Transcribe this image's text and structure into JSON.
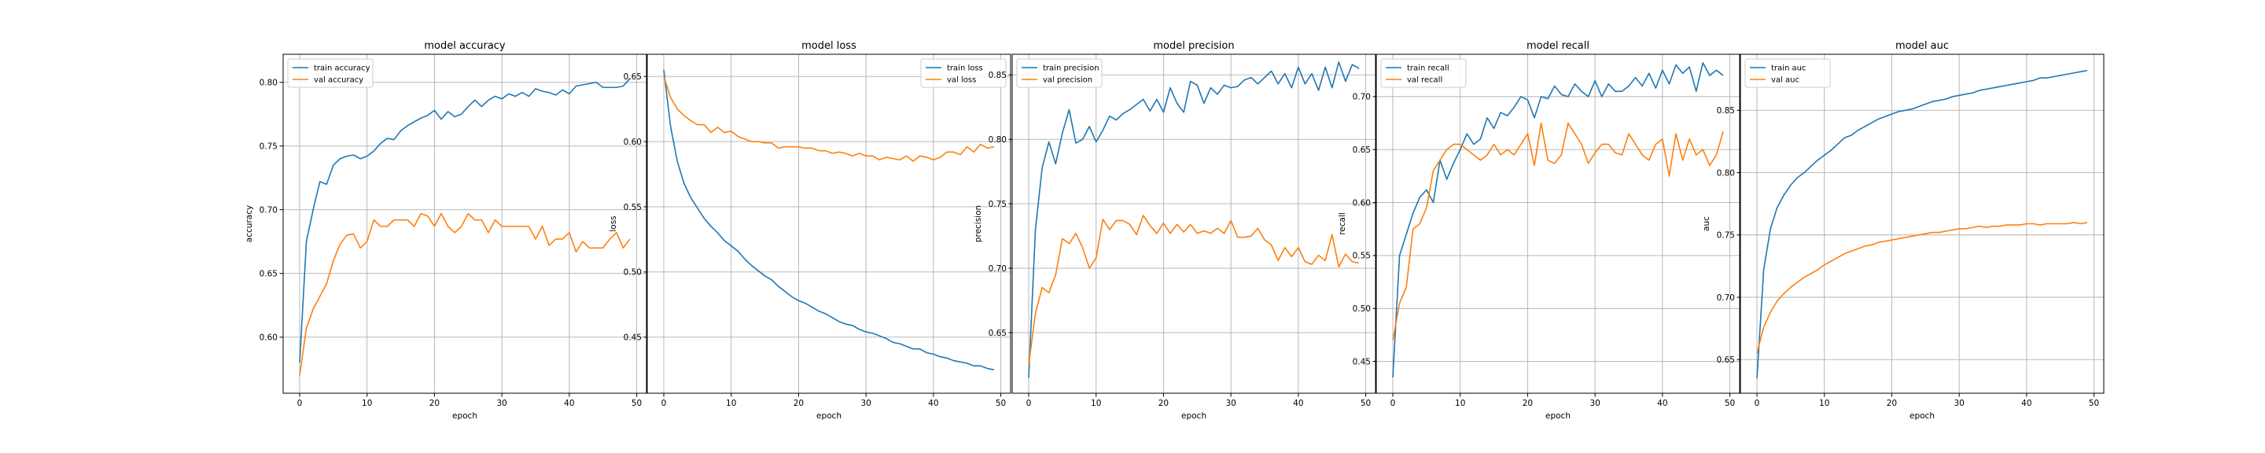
{
  "figure": {
    "colors": {
      "train": "#1f77b4",
      "val": "#ff7f0e",
      "grid": "#b0b0b0",
      "axes": "#000000"
    }
  },
  "chart_data": [
    {
      "type": "line",
      "title": "model accuracy",
      "xlabel": "epoch",
      "ylabel": "accuracy",
      "xlim": [
        -2.45,
        51.45
      ],
      "ylim": [
        0.556,
        0.822
      ],
      "xticks": [
        0,
        10,
        20,
        30,
        40,
        50
      ],
      "yticks": [
        0.6,
        0.65,
        0.7,
        0.75,
        0.8
      ],
      "ytick_labels": [
        "0.60",
        "0.65",
        "0.70",
        "0.75",
        "0.80"
      ],
      "grid": true,
      "legend": "upper left",
      "x": [
        0,
        1,
        2,
        3,
        4,
        5,
        6,
        7,
        8,
        9,
        10,
        11,
        12,
        13,
        14,
        15,
        16,
        17,
        18,
        19,
        20,
        21,
        22,
        23,
        24,
        25,
        26,
        27,
        28,
        29,
        30,
        31,
        32,
        33,
        34,
        35,
        36,
        37,
        38,
        39,
        40,
        41,
        42,
        43,
        44,
        45,
        46,
        47,
        48,
        49
      ],
      "series": [
        {
          "name": "train accuracy",
          "color": "#1f77b4",
          "values": [
            0.58,
            0.675,
            0.7,
            0.722,
            0.72,
            0.735,
            0.74,
            0.742,
            0.743,
            0.74,
            0.742,
            0.746,
            0.752,
            0.756,
            0.755,
            0.762,
            0.766,
            0.769,
            0.772,
            0.774,
            0.778,
            0.771,
            0.777,
            0.773,
            0.775,
            0.781,
            0.786,
            0.781,
            0.786,
            0.789,
            0.787,
            0.791,
            0.789,
            0.792,
            0.789,
            0.795,
            0.793,
            0.792,
            0.79,
            0.794,
            0.791,
            0.797,
            0.798,
            0.799,
            0.8,
            0.796,
            0.796,
            0.796,
            0.797,
            0.803
          ]
        },
        {
          "name": "val accuracy",
          "color": "#ff7f0e",
          "values": [
            0.57,
            0.607,
            0.622,
            0.632,
            0.642,
            0.66,
            0.673,
            0.68,
            0.681,
            0.67,
            0.675,
            0.692,
            0.687,
            0.687,
            0.692,
            0.692,
            0.692,
            0.687,
            0.697,
            0.695,
            0.687,
            0.697,
            0.687,
            0.682,
            0.687,
            0.697,
            0.692,
            0.692,
            0.682,
            0.692,
            0.687,
            0.687,
            0.687,
            0.687,
            0.687,
            0.677,
            0.687,
            0.672,
            0.677,
            0.677,
            0.682,
            0.667,
            0.675,
            0.67,
            0.67,
            0.67,
            0.677,
            0.682,
            0.67,
            0.677
          ]
        }
      ]
    },
    {
      "type": "line",
      "title": "model loss",
      "xlabel": "epoch",
      "ylabel": "loss",
      "xlim": [
        -2.45,
        51.45
      ],
      "ylim": [
        0.407,
        0.667
      ],
      "xticks": [
        0,
        10,
        20,
        30,
        40,
        50
      ],
      "yticks": [
        0.45,
        0.5,
        0.55,
        0.6,
        0.65
      ],
      "ytick_labels": [
        "0.45",
        "0.50",
        "0.55",
        "0.60",
        "0.65"
      ],
      "grid": true,
      "legend": "upper right",
      "x": [
        0,
        1,
        2,
        3,
        4,
        5,
        6,
        7,
        8,
        9,
        10,
        11,
        12,
        13,
        14,
        15,
        16,
        17,
        18,
        19,
        20,
        21,
        22,
        23,
        24,
        25,
        26,
        27,
        28,
        29,
        30,
        31,
        32,
        33,
        34,
        35,
        36,
        37,
        38,
        39,
        40,
        41,
        42,
        43,
        44,
        45,
        46,
        47,
        48,
        49
      ],
      "series": [
        {
          "name": "train loss",
          "color": "#1f77b4",
          "values": [
            0.655,
            0.612,
            0.585,
            0.568,
            0.557,
            0.549,
            0.541,
            0.535,
            0.53,
            0.524,
            0.52,
            0.516,
            0.51,
            0.505,
            0.501,
            0.497,
            0.494,
            0.489,
            0.485,
            0.481,
            0.478,
            0.476,
            0.473,
            0.47,
            0.468,
            0.465,
            0.462,
            0.46,
            0.459,
            0.456,
            0.454,
            0.453,
            0.451,
            0.449,
            0.446,
            0.445,
            0.443,
            0.441,
            0.441,
            0.438,
            0.437,
            0.435,
            0.434,
            0.432,
            0.431,
            0.43,
            0.428,
            0.428,
            0.426,
            0.425
          ]
        },
        {
          "name": "val loss",
          "color": "#ff7f0e",
          "values": [
            0.65,
            0.634,
            0.625,
            0.62,
            0.616,
            0.613,
            0.613,
            0.607,
            0.611,
            0.607,
            0.608,
            0.604,
            0.602,
            0.6,
            0.6,
            0.599,
            0.599,
            0.595,
            0.596,
            0.596,
            0.596,
            0.595,
            0.595,
            0.593,
            0.593,
            0.591,
            0.592,
            0.591,
            0.589,
            0.591,
            0.589,
            0.589,
            0.586,
            0.588,
            0.587,
            0.586,
            0.589,
            0.585,
            0.589,
            0.588,
            0.586,
            0.588,
            0.592,
            0.592,
            0.59,
            0.596,
            0.592,
            0.598,
            0.595,
            0.596
          ]
        }
      ]
    },
    {
      "type": "line",
      "title": "model precision",
      "xlabel": "epoch",
      "ylabel": "precision",
      "xlim": [
        -2.45,
        51.45
      ],
      "ylim": [
        0.603,
        0.866
      ],
      "xticks": [
        0,
        10,
        20,
        30,
        40,
        50
      ],
      "yticks": [
        0.65,
        0.7,
        0.75,
        0.8,
        0.85
      ],
      "ytick_labels": [
        "0.65",
        "0.70",
        "0.75",
        "0.80",
        "0.85"
      ],
      "grid": true,
      "legend": "upper left",
      "x": [
        0,
        1,
        2,
        3,
        4,
        5,
        6,
        7,
        8,
        9,
        10,
        11,
        12,
        13,
        14,
        15,
        16,
        17,
        18,
        19,
        20,
        21,
        22,
        23,
        24,
        25,
        26,
        27,
        28,
        29,
        30,
        31,
        32,
        33,
        34,
        35,
        36,
        37,
        38,
        39,
        40,
        41,
        42,
        43,
        44,
        45,
        46,
        47,
        48,
        49
      ],
      "series": [
        {
          "name": "train precision",
          "color": "#1f77b4",
          "values": [
            0.615,
            0.73,
            0.778,
            0.798,
            0.781,
            0.805,
            0.823,
            0.797,
            0.8,
            0.81,
            0.798,
            0.807,
            0.818,
            0.815,
            0.82,
            0.823,
            0.827,
            0.831,
            0.822,
            0.831,
            0.821,
            0.84,
            0.828,
            0.821,
            0.845,
            0.842,
            0.828,
            0.84,
            0.835,
            0.842,
            0.84,
            0.841,
            0.846,
            0.848,
            0.843,
            0.848,
            0.853,
            0.843,
            0.851,
            0.84,
            0.856,
            0.843,
            0.851,
            0.838,
            0.856,
            0.84,
            0.86,
            0.845,
            0.858,
            0.855
          ]
        },
        {
          "name": "val precision",
          "color": "#ff7f0e",
          "values": [
            0.625,
            0.665,
            0.685,
            0.681,
            0.695,
            0.723,
            0.719,
            0.727,
            0.716,
            0.7,
            0.708,
            0.738,
            0.73,
            0.737,
            0.737,
            0.734,
            0.726,
            0.741,
            0.733,
            0.727,
            0.735,
            0.727,
            0.734,
            0.728,
            0.734,
            0.727,
            0.729,
            0.727,
            0.731,
            0.727,
            0.737,
            0.724,
            0.724,
            0.725,
            0.731,
            0.722,
            0.718,
            0.706,
            0.716,
            0.709,
            0.716,
            0.705,
            0.703,
            0.71,
            0.706,
            0.726,
            0.701,
            0.711,
            0.705,
            0.704
          ]
        }
      ]
    },
    {
      "type": "line",
      "title": "model recall",
      "xlabel": "epoch",
      "ylabel": "recall",
      "xlim": [
        -2.45,
        51.45
      ],
      "ylim": [
        0.42,
        0.74
      ],
      "xticks": [
        0,
        10,
        20,
        30,
        40,
        50
      ],
      "yticks": [
        0.45,
        0.5,
        0.55,
        0.6,
        0.65,
        0.7
      ],
      "ytick_labels": [
        "0.45",
        "0.50",
        "0.55",
        "0.60",
        "0.65",
        "0.70"
      ],
      "grid": true,
      "legend": "upper left",
      "x": [
        0,
        1,
        2,
        3,
        4,
        5,
        6,
        7,
        8,
        9,
        10,
        11,
        12,
        13,
        14,
        15,
        16,
        17,
        18,
        19,
        20,
        21,
        22,
        23,
        24,
        25,
        26,
        27,
        28,
        29,
        30,
        31,
        32,
        33,
        34,
        35,
        36,
        37,
        38,
        39,
        40,
        41,
        42,
        43,
        44,
        45,
        46,
        47,
        48,
        49
      ],
      "series": [
        {
          "name": "train recall",
          "color": "#1f77b4",
          "values": [
            0.435,
            0.55,
            0.57,
            0.59,
            0.605,
            0.612,
            0.6,
            0.64,
            0.622,
            0.637,
            0.65,
            0.665,
            0.655,
            0.66,
            0.68,
            0.67,
            0.685,
            0.682,
            0.69,
            0.7,
            0.697,
            0.68,
            0.7,
            0.698,
            0.71,
            0.702,
            0.7,
            0.712,
            0.705,
            0.7,
            0.715,
            0.7,
            0.712,
            0.705,
            0.705,
            0.71,
            0.718,
            0.71,
            0.722,
            0.708,
            0.725,
            0.712,
            0.73,
            0.722,
            0.728,
            0.705,
            0.732,
            0.72,
            0.725,
            0.72
          ]
        },
        {
          "name": "val recall",
          "color": "#ff7f0e",
          "values": [
            0.47,
            0.505,
            0.52,
            0.575,
            0.58,
            0.595,
            0.63,
            0.64,
            0.65,
            0.655,
            0.655,
            0.65,
            0.645,
            0.64,
            0.645,
            0.655,
            0.645,
            0.65,
            0.645,
            0.655,
            0.665,
            0.635,
            0.675,
            0.64,
            0.637,
            0.645,
            0.675,
            0.665,
            0.655,
            0.637,
            0.647,
            0.655,
            0.655,
            0.647,
            0.645,
            0.665,
            0.655,
            0.645,
            0.64,
            0.655,
            0.66,
            0.625,
            0.665,
            0.64,
            0.66,
            0.645,
            0.65,
            0.635,
            0.645,
            0.667
          ]
        }
      ]
    },
    {
      "type": "line",
      "title": "model auc",
      "xlabel": "epoch",
      "ylabel": "auc",
      "xlim": [
        -2.45,
        51.45
      ],
      "ylim": [
        0.623,
        0.895
      ],
      "xticks": [
        0,
        10,
        20,
        30,
        40,
        50
      ],
      "yticks": [
        0.65,
        0.7,
        0.75,
        0.8,
        0.85
      ],
      "ytick_labels": [
        "0.65",
        "0.70",
        "0.75",
        "0.80",
        "0.85"
      ],
      "grid": true,
      "legend": "upper left",
      "x": [
        0,
        1,
        2,
        3,
        4,
        5,
        6,
        7,
        8,
        9,
        10,
        11,
        12,
        13,
        14,
        15,
        16,
        17,
        18,
        19,
        20,
        21,
        22,
        23,
        24,
        25,
        26,
        27,
        28,
        29,
        30,
        31,
        32,
        33,
        34,
        35,
        36,
        37,
        38,
        39,
        40,
        41,
        42,
        43,
        44,
        45,
        46,
        47,
        48,
        49
      ],
      "series": [
        {
          "name": "train auc",
          "color": "#1f77b4",
          "values": [
            0.635,
            0.722,
            0.755,
            0.772,
            0.782,
            0.79,
            0.796,
            0.8,
            0.805,
            0.81,
            0.814,
            0.818,
            0.823,
            0.828,
            0.83,
            0.834,
            0.837,
            0.84,
            0.843,
            0.845,
            0.847,
            0.849,
            0.85,
            0.851,
            0.853,
            0.855,
            0.857,
            0.858,
            0.859,
            0.861,
            0.862,
            0.863,
            0.864,
            0.866,
            0.867,
            0.868,
            0.869,
            0.87,
            0.871,
            0.872,
            0.873,
            0.874,
            0.876,
            0.876,
            0.877,
            0.878,
            0.879,
            0.88,
            0.881,
            0.882
          ]
        },
        {
          "name": "val auc",
          "color": "#ff7f0e",
          "values": [
            0.655,
            0.676,
            0.688,
            0.697,
            0.703,
            0.708,
            0.712,
            0.716,
            0.719,
            0.722,
            0.726,
            0.729,
            0.732,
            0.735,
            0.737,
            0.739,
            0.741,
            0.742,
            0.744,
            0.745,
            0.746,
            0.747,
            0.748,
            0.749,
            0.75,
            0.751,
            0.752,
            0.752,
            0.753,
            0.754,
            0.755,
            0.755,
            0.756,
            0.757,
            0.756,
            0.757,
            0.757,
            0.758,
            0.758,
            0.758,
            0.759,
            0.759,
            0.758,
            0.759,
            0.759,
            0.759,
            0.759,
            0.76,
            0.759,
            0.76
          ]
        }
      ]
    }
  ]
}
